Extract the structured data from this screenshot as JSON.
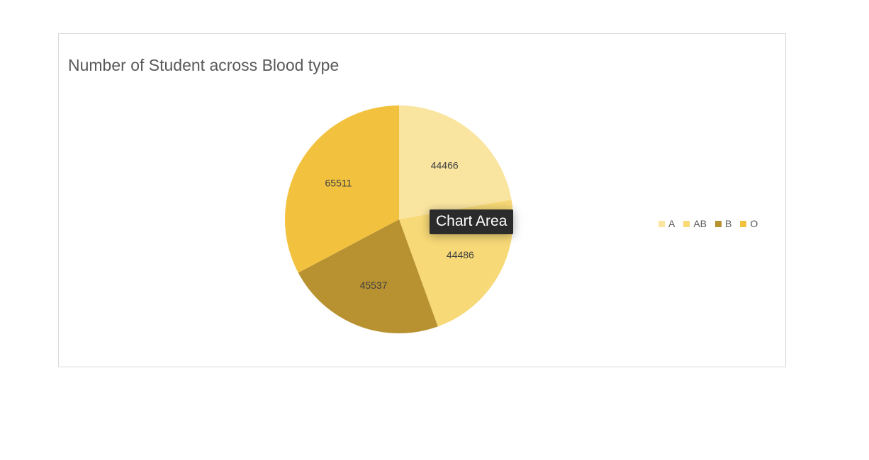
{
  "chart_data": {
    "type": "pie",
    "title": "Number of Student across Blood type",
    "categories": [
      "A",
      "AB",
      "B",
      "O"
    ],
    "values": [
      44466,
      44486,
      45537,
      65511
    ],
    "colors": [
      "#fae5a0",
      "#f7d977",
      "#b89230",
      "#f2c23f"
    ],
    "data_labels": true,
    "legend": "right"
  },
  "tooltip": {
    "text": "Chart Area"
  }
}
